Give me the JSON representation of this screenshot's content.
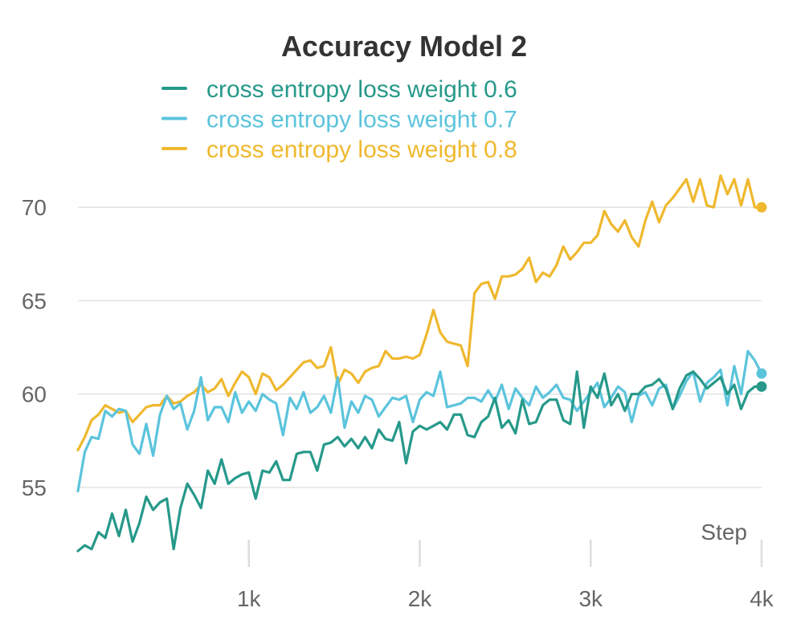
{
  "chart_data": {
    "type": "line",
    "title": "Accuracy Model 2",
    "xlabel": "Step",
    "ylabel": "",
    "xlim": [
      0,
      4000
    ],
    "ylim": [
      51.0,
      72.5
    ],
    "yticks": [
      55,
      60,
      65,
      70
    ],
    "xticks": [
      1000,
      2000,
      3000,
      4000
    ],
    "xtick_labels": [
      "1k",
      "2k",
      "3k",
      "4k"
    ],
    "ytick_labels": [
      "55",
      "60",
      "65",
      "70"
    ],
    "grid": "horizontal",
    "legend_position": "top",
    "x_step": 40,
    "series": [
      {
        "name": "cross entropy loss weight 0.6",
        "color": "#26998a",
        "values": [
          51.6,
          51.9,
          51.7,
          52.6,
          52.3,
          53.6,
          52.4,
          53.8,
          52.1,
          53.1,
          54.5,
          53.8,
          54.2,
          54.4,
          51.7,
          53.9,
          55.2,
          54.6,
          53.9,
          55.9,
          55.2,
          56.5,
          55.2,
          55.5,
          55.7,
          55.8,
          54.4,
          55.9,
          55.8,
          56.4,
          55.4,
          55.4,
          56.8,
          56.9,
          56.9,
          55.9,
          57.3,
          57.4,
          57.7,
          57.2,
          57.6,
          57.1,
          57.7,
          57.1,
          58.1,
          57.6,
          57.5,
          58.5,
          56.3,
          58.0,
          58.3,
          58.1,
          58.3,
          58.5,
          58.1,
          58.9,
          58.9,
          57.8,
          57.7,
          58.5,
          58.8,
          59.8,
          58.2,
          58.6,
          57.9,
          59.7,
          58.4,
          58.5,
          59.4,
          59.7,
          59.7,
          58.6,
          58.4,
          61.2,
          58.2,
          60.4,
          59.8,
          61.1,
          59.4,
          60.0,
          59.1,
          60.0,
          60.0,
          60.4,
          60.5,
          60.8,
          60.3,
          59.2,
          60.3,
          61.0,
          61.2,
          60.8,
          60.3,
          60.6,
          60.9,
          60.0,
          60.5,
          59.2,
          60.1,
          60.4,
          60.4
        ]
      },
      {
        "name": "cross entropy loss weight 0.7",
        "color": "#5bc4dc",
        "values": [
          54.8,
          56.9,
          57.7,
          57.6,
          59.1,
          58.8,
          59.2,
          59.1,
          57.3,
          56.8,
          58.4,
          56.7,
          58.9,
          59.9,
          59.2,
          59.5,
          58.1,
          59.1,
          60.9,
          58.6,
          59.3,
          59.3,
          58.5,
          60.1,
          59.0,
          59.6,
          59.1,
          60.0,
          59.7,
          59.5,
          57.8,
          59.8,
          59.2,
          60.1,
          59.0,
          59.3,
          59.9,
          59.0,
          60.9,
          58.2,
          59.6,
          59.0,
          59.9,
          59.7,
          58.8,
          59.3,
          59.8,
          59.7,
          59.9,
          58.5,
          59.7,
          60.1,
          59.9,
          61.2,
          59.3,
          59.4,
          59.5,
          59.8,
          59.8,
          59.6,
          60.2,
          59.6,
          60.5,
          59.2,
          60.3,
          59.8,
          59.4,
          60.4,
          59.8,
          60.1,
          60.5,
          59.8,
          59.7,
          59.1,
          59.6,
          60.1,
          60.6,
          59.3,
          59.8,
          60.4,
          60.1,
          58.5,
          59.9,
          60.1,
          59.4,
          60.3,
          60.5,
          59.2,
          59.9,
          60.7,
          61.2,
          59.6,
          60.6,
          60.9,
          61.3,
          59.4,
          61.5,
          60.0,
          62.3,
          61.8,
          61.1
        ]
      },
      {
        "name": "cross entropy loss weight 0.8",
        "color": "#efb82e",
        "values": [
          57.0,
          57.7,
          58.6,
          58.9,
          59.4,
          59.2,
          59.0,
          59.1,
          58.5,
          58.9,
          59.3,
          59.4,
          59.4,
          59.9,
          59.5,
          59.6,
          59.9,
          60.1,
          60.5,
          60.1,
          60.3,
          60.8,
          59.9,
          60.6,
          61.2,
          60.9,
          60.0,
          61.1,
          60.9,
          60.2,
          60.5,
          60.9,
          61.3,
          61.7,
          61.8,
          61.4,
          61.5,
          62.5,
          60.5,
          61.3,
          61.1,
          60.6,
          61.2,
          61.4,
          61.5,
          62.3,
          61.9,
          61.9,
          62.0,
          61.9,
          62.1,
          63.2,
          64.5,
          63.3,
          62.8,
          62.7,
          62.6,
          61.5,
          65.4,
          65.9,
          66.0,
          65.1,
          66.3,
          66.3,
          66.4,
          66.7,
          67.3,
          66.0,
          66.5,
          66.3,
          66.9,
          67.9,
          67.2,
          67.6,
          68.1,
          68.1,
          68.5,
          69.8,
          69.1,
          68.7,
          69.3,
          68.4,
          67.9,
          69.3,
          70.3,
          69.2,
          70.1,
          70.5,
          71.0,
          71.5,
          70.3,
          71.5,
          70.1,
          70.0,
          71.7,
          70.7,
          71.5,
          70.1,
          71.5,
          70.0,
          70.0
        ]
      }
    ]
  }
}
